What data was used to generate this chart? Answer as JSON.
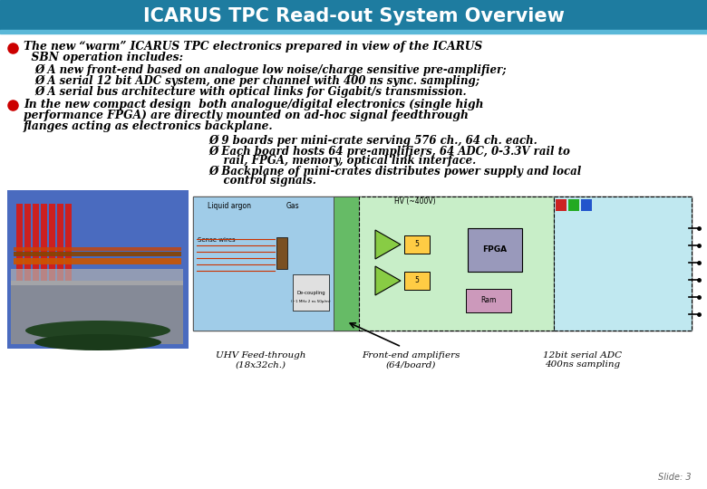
{
  "title": "ICARUS TPC Read-out System Overview",
  "title_bg_top": "#2a7fa0",
  "title_bg_bot": "#1a5f7a",
  "title_color": "white",
  "bg_color": "white",
  "bullet_color": "#cc0000",
  "arrow_color": "#cc0000",
  "text_color": "black",
  "bullet1_line1": "The new “warm” ICARUS TPC electronics prepared in view of the ICARUS",
  "bullet1_line2": "  SBN operation includes:",
  "bullet1_subs": [
    "Ø A new front-end based on analogue low noise/charge sensitive pre-amplifier;",
    "Ø A serial 12 bit ADC system, one per channel with 400 ns sync. sampling;",
    "Ø A serial bus architecture with optical links for Gigabit/s transmission."
  ],
  "bullet2_line1": "In the new compact design  both analogue/digital electronics (single high",
  "bullet2_line2": "performance FPGA) are directly mounted on ad-hoc signal feedthrough",
  "bullet2_line3": "flanges acting as electronics backplane.",
  "bullet2_subs": [
    "Ø 9 boards per mini-crate serving 576 ch., 64 ch. each.",
    "Ø Each board hosts 64 pre-amplifiers, 64 ADC, 0-3.3V rail to",
    "    rail, FPGA, memory, optical link interface.",
    "Ø Backplane of mini-crates distributes power supply and local",
    "    control signals."
  ],
  "caption1": "UHV Feed-through\n(18x32ch.)",
  "caption2": "Front-end amplifiers\n(64/board)",
  "caption3": "12bit serial ADC\n400ns sampling",
  "slide_label": "Slide: 3"
}
